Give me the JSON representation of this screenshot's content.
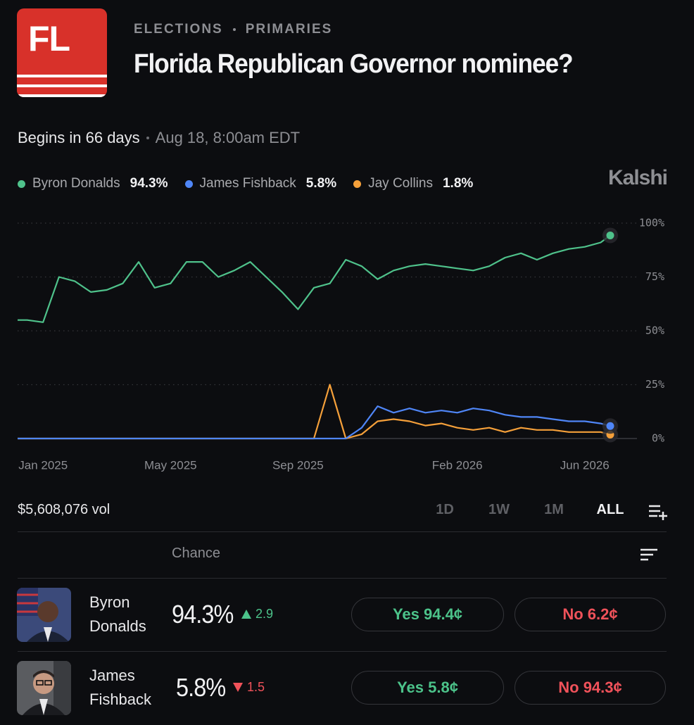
{
  "header": {
    "badge": "FL",
    "breadcrumbs": [
      "ELECTIONS",
      "PRIMARIES"
    ],
    "title": "Florida Republican Governor nominee?"
  },
  "schedule": {
    "countdown": "Begins in 66 days",
    "start": "Aug 18, 8:00am EDT"
  },
  "brand": "Kalshi",
  "chart_data": {
    "type": "line",
    "x": [
      -0.8,
      -0.5,
      0,
      0.5,
      1,
      1.5,
      2,
      2.5,
      3,
      3.5,
      4,
      4.5,
      5,
      5.5,
      6,
      6.5,
      7,
      7.5,
      8,
      8.5,
      9,
      9.5,
      10,
      10.5,
      11,
      11.5,
      12,
      12.5,
      13,
      13.5,
      14,
      14.5,
      15,
      15.5,
      16,
      16.5,
      17,
      17.5,
      17.8
    ],
    "series": [
      {
        "name": "Byron Donalds",
        "color": "#4fc28b",
        "current_label": "94.3%",
        "values": [
          55,
          55,
          54,
          75,
          73,
          68,
          69,
          72,
          82,
          70,
          72,
          82,
          82,
          75,
          78,
          82,
          75,
          68,
          60,
          70,
          72,
          83,
          80,
          74,
          78,
          80,
          81,
          80,
          79,
          78,
          80,
          84,
          86,
          83,
          86,
          88,
          89,
          91,
          94.3
        ]
      },
      {
        "name": "James Fishback",
        "color": "#4f86f7",
        "current_label": "5.8%",
        "values": [
          0,
          0,
          0,
          0,
          0,
          0,
          0,
          0,
          0,
          0,
          0,
          0,
          0,
          0,
          0,
          0,
          0,
          0,
          0,
          0,
          0,
          0,
          5,
          15,
          12,
          14,
          12,
          13,
          12,
          14,
          13,
          11,
          10,
          10,
          9,
          8,
          8,
          7,
          5.8
        ]
      },
      {
        "name": "Jay Collins",
        "color": "#f5a03a",
        "current_label": "1.8%",
        "values": [
          0,
          0,
          0,
          0,
          0,
          0,
          0,
          0,
          0,
          0,
          0,
          0,
          0,
          0,
          0,
          0,
          0,
          0,
          0,
          0,
          25,
          0,
          2,
          8,
          9,
          8,
          6,
          7,
          5,
          4,
          5,
          3,
          5,
          4,
          4,
          3,
          3,
          3,
          1.8
        ]
      }
    ],
    "xlim": [
      -0.8,
      17.8
    ],
    "xticks": [
      {
        "value": 0,
        "label": "Jan 2025"
      },
      {
        "value": 4,
        "label": "May 2025"
      },
      {
        "value": 8,
        "label": "Sep 2025"
      },
      {
        "value": 13,
        "label": "Feb 2026"
      },
      {
        "value": 17,
        "label": "Jun 2026"
      }
    ],
    "ylim": [
      0,
      100
    ],
    "yticks": [
      {
        "value": 0,
        "label": "0%"
      },
      {
        "value": 25,
        "label": "25%"
      },
      {
        "value": 50,
        "label": "50%"
      },
      {
        "value": 75,
        "label": "75%"
      },
      {
        "value": 100,
        "label": "100%"
      }
    ],
    "grid": true
  },
  "volume": "$5,608,076 vol",
  "ranges": [
    "1D",
    "1W",
    "1M",
    "ALL"
  ],
  "active_range": 3,
  "table": {
    "header": "Chance",
    "rows": [
      {
        "name": "Byron Donalds",
        "chance": "94.3%",
        "change": 2.9,
        "direction": "up",
        "yes": "Yes 94.4¢",
        "no": "No 6.2¢"
      },
      {
        "name": "James Fishback",
        "chance": "5.8%",
        "change": 1.5,
        "direction": "down",
        "yes": "Yes 5.8¢",
        "no": "No 94.3¢"
      }
    ]
  }
}
